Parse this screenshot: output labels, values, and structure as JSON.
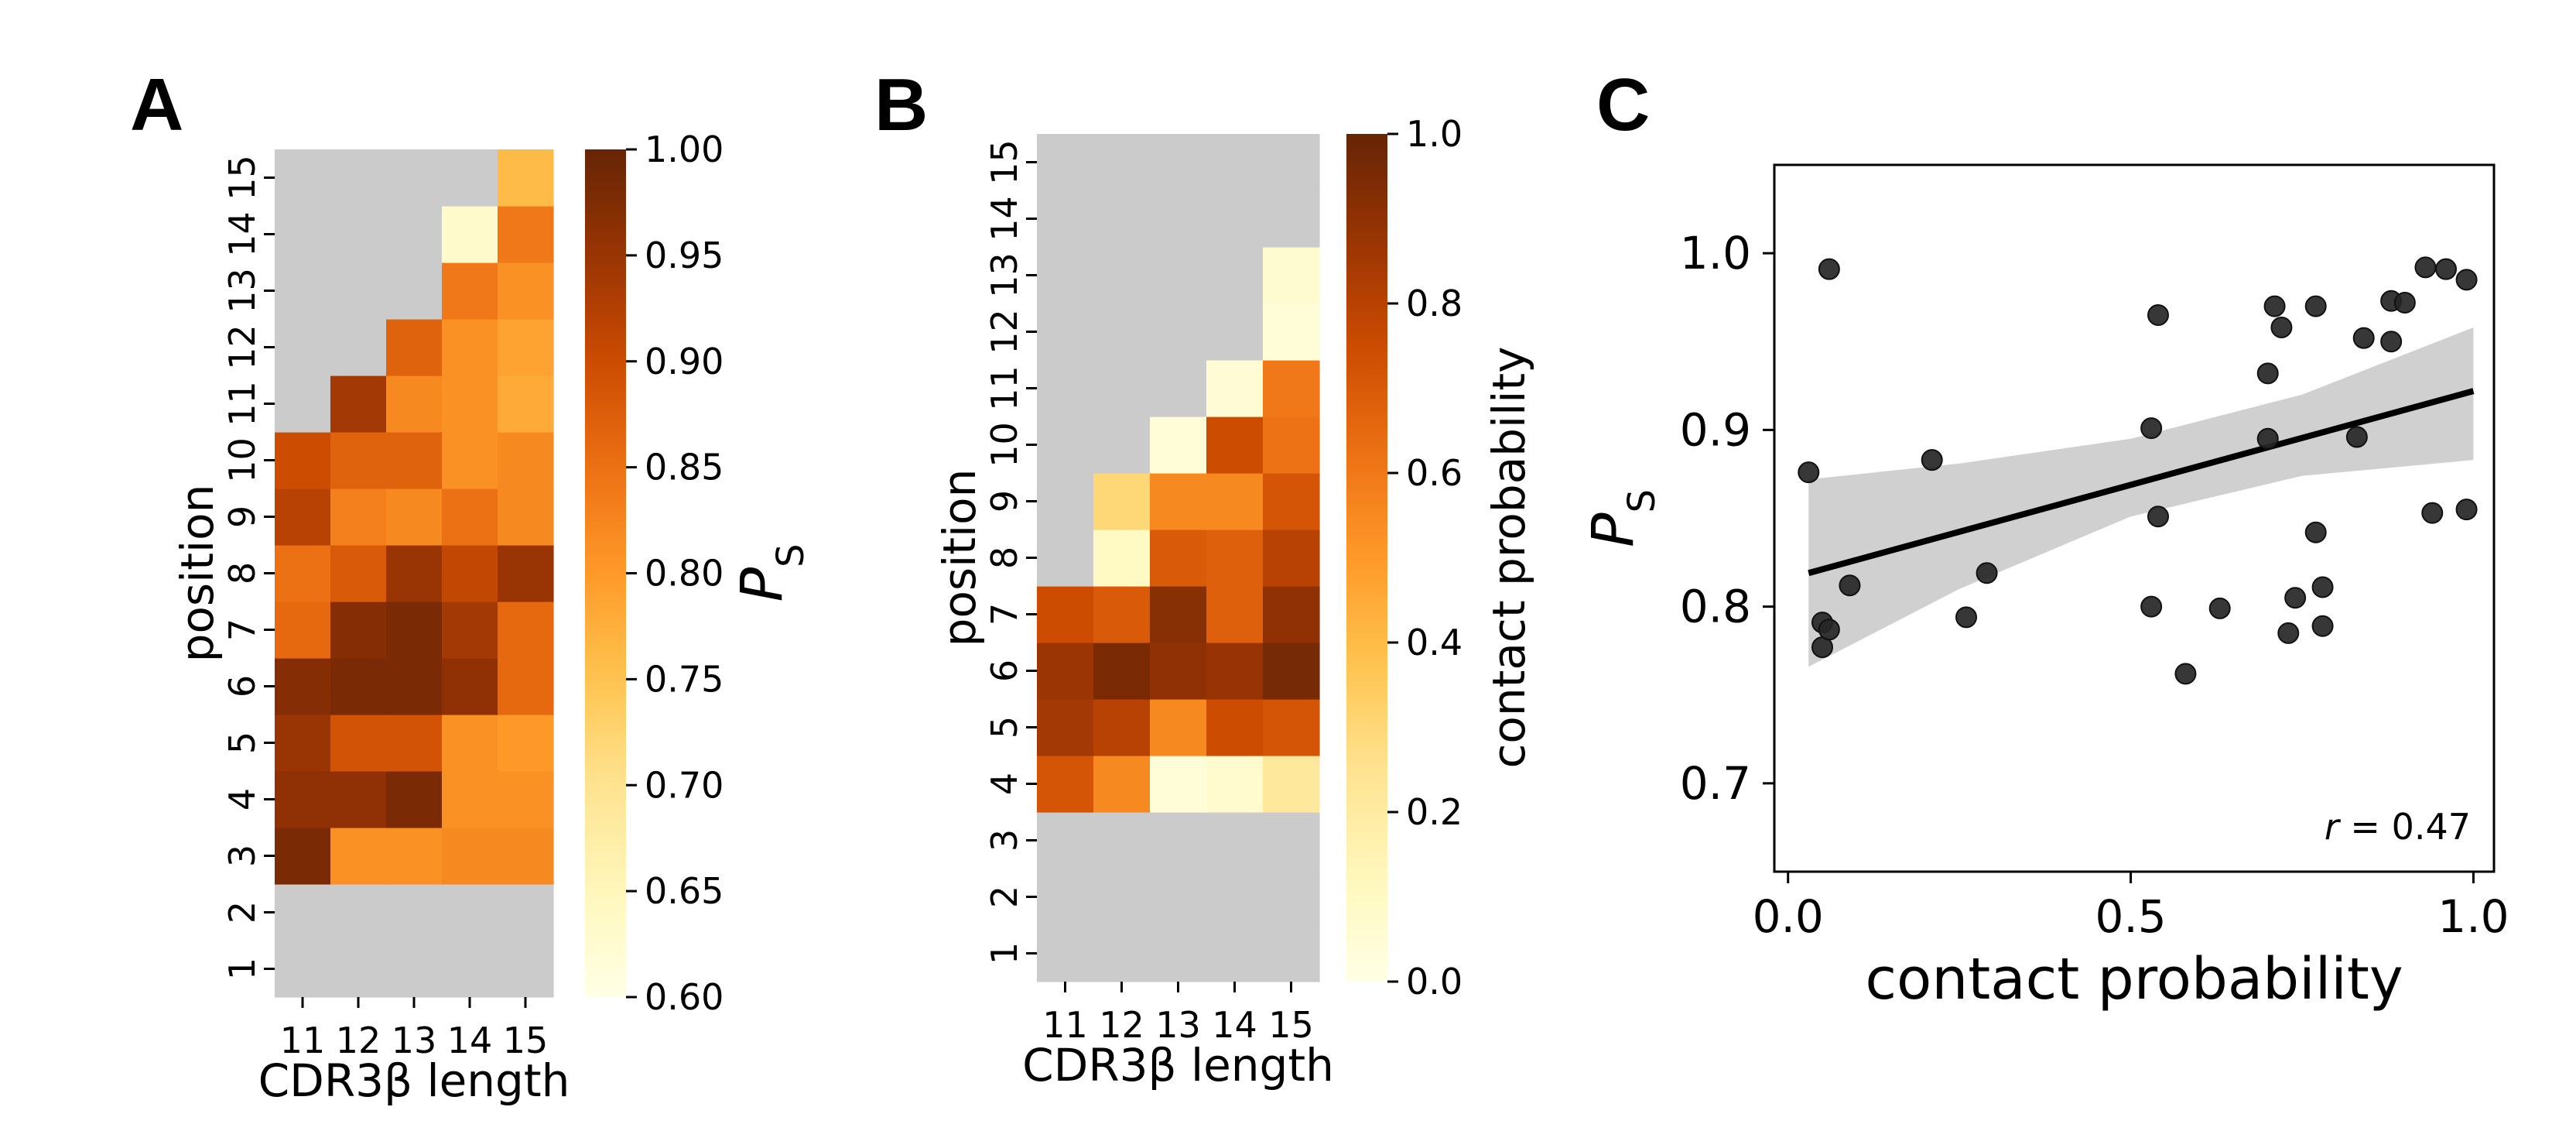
{
  "panels": {
    "A": {
      "letter": "A"
    },
    "B": {
      "letter": "B"
    },
    "C": {
      "letter": "C"
    }
  },
  "chart_data": [
    {
      "id": "A",
      "type": "heatmap",
      "title": "",
      "xlabel": "CDR3β length",
      "ylabel": "position",
      "x_categories": [
        "11",
        "12",
        "13",
        "14",
        "15"
      ],
      "y_categories": [
        "1",
        "2",
        "3",
        "4",
        "5",
        "6",
        "7",
        "8",
        "9",
        "10",
        "11",
        "12",
        "13",
        "14",
        "15"
      ],
      "values": [
        [
          null,
          null,
          null,
          null,
          null
        ],
        [
          null,
          null,
          null,
          null,
          null
        ],
        [
          0.98,
          0.81,
          0.81,
          0.82,
          0.82
        ],
        [
          0.96,
          0.96,
          0.98,
          0.81,
          0.81
        ],
        [
          0.95,
          0.89,
          0.89,
          0.81,
          0.8
        ],
        [
          0.97,
          0.98,
          0.98,
          0.96,
          0.86
        ],
        [
          0.86,
          0.97,
          0.98,
          0.94,
          0.86
        ],
        [
          0.85,
          0.88,
          0.95,
          0.91,
          0.95
        ],
        [
          0.92,
          0.83,
          0.82,
          0.85,
          0.82
        ],
        [
          0.9,
          0.87,
          0.87,
          0.81,
          0.82
        ],
        [
          null,
          0.94,
          0.82,
          0.81,
          0.78
        ],
        [
          null,
          null,
          0.87,
          0.81,
          0.79
        ],
        [
          null,
          null,
          null,
          0.84,
          0.81
        ],
        [
          null,
          null,
          null,
          0.63,
          0.84
        ],
        [
          null,
          null,
          null,
          null,
          0.76
        ]
      ],
      "colorbar": {
        "label": "P",
        "label_sub": "S",
        "min": 0.6,
        "max": 1.0,
        "ticks": [
          "0.60",
          "0.65",
          "0.70",
          "0.75",
          "0.80",
          "0.85",
          "0.90",
          "0.95",
          "1.00"
        ]
      }
    },
    {
      "id": "B",
      "type": "heatmap",
      "title": "",
      "xlabel": "CDR3β length",
      "ylabel": "position",
      "x_categories": [
        "11",
        "12",
        "13",
        "14",
        "15"
      ],
      "y_categories": [
        "1",
        "2",
        "3",
        "4",
        "5",
        "6",
        "7",
        "8",
        "9",
        "10",
        "11",
        "12",
        "13",
        "14",
        "15"
      ],
      "values": [
        [
          null,
          null,
          null,
          null,
          null
        ],
        [
          null,
          null,
          null,
          null,
          null
        ],
        [
          null,
          null,
          null,
          null,
          null
        ],
        [
          0.72,
          0.55,
          0.04,
          0.07,
          0.22
        ],
        [
          0.85,
          0.8,
          0.55,
          0.75,
          0.72
        ],
        [
          0.87,
          0.95,
          0.9,
          0.88,
          0.96
        ],
        [
          0.75,
          0.7,
          0.92,
          0.68,
          0.9
        ],
        [
          null,
          0.1,
          0.7,
          0.68,
          0.8
        ],
        [
          null,
          0.3,
          0.55,
          0.55,
          0.72
        ],
        [
          null,
          null,
          0.04,
          0.75,
          0.62
        ],
        [
          null,
          null,
          null,
          0.05,
          0.6
        ],
        [
          null,
          null,
          null,
          null,
          0.04
        ],
        [
          null,
          null,
          null,
          null,
          0.06
        ],
        [
          null,
          null,
          null,
          null,
          null
        ],
        [
          null,
          null,
          null,
          null,
          null
        ]
      ],
      "colorbar": {
        "label": "contact probability",
        "min": 0.0,
        "max": 1.0,
        "ticks": [
          "0.0",
          "0.2",
          "0.4",
          "0.6",
          "0.8",
          "1.0"
        ]
      }
    },
    {
      "id": "C",
      "type": "scatter",
      "title": "",
      "xlabel": "contact probability",
      "ylabel": "P",
      "ylabel_sub": "S",
      "xlim": [
        -0.02,
        1.03
      ],
      "ylim": [
        0.65,
        1.05
      ],
      "xticks": [
        "0.0",
        "0.5",
        "1.0"
      ],
      "yticks": [
        "0.7",
        "0.8",
        "0.9",
        "1.0"
      ],
      "points": [
        [
          0.03,
          0.876
        ],
        [
          0.05,
          0.791
        ],
        [
          0.05,
          0.777
        ],
        [
          0.06,
          0.787
        ],
        [
          0.06,
          0.991
        ],
        [
          0.09,
          0.812
        ],
        [
          0.21,
          0.883
        ],
        [
          0.26,
          0.794
        ],
        [
          0.29,
          0.819
        ],
        [
          0.53,
          0.901
        ],
        [
          0.53,
          0.8
        ],
        [
          0.54,
          0.965
        ],
        [
          0.54,
          0.851
        ],
        [
          0.58,
          0.762
        ],
        [
          0.63,
          0.799
        ],
        [
          0.7,
          0.932
        ],
        [
          0.7,
          0.895
        ],
        [
          0.71,
          0.97
        ],
        [
          0.72,
          0.958
        ],
        [
          0.73,
          0.785
        ],
        [
          0.74,
          0.805
        ],
        [
          0.77,
          0.97
        ],
        [
          0.77,
          0.842
        ],
        [
          0.78,
          0.811
        ],
        [
          0.78,
          0.789
        ],
        [
          0.83,
          0.896
        ],
        [
          0.84,
          0.952
        ],
        [
          0.88,
          0.973
        ],
        [
          0.88,
          0.95
        ],
        [
          0.9,
          0.972
        ],
        [
          0.93,
          0.992
        ],
        [
          0.94,
          0.853
        ],
        [
          0.96,
          0.991
        ],
        [
          0.99,
          0.985
        ],
        [
          0.99,
          0.855
        ]
      ],
      "fit": {
        "x": [
          0.03,
          1.0
        ],
        "y": [
          0.819,
          0.922
        ]
      },
      "ci": {
        "x": [
          0.03,
          0.25,
          0.5,
          0.75,
          1.0
        ],
        "upper": [
          0.872,
          0.881,
          0.895,
          0.92,
          0.958
        ],
        "lower": [
          0.766,
          0.81,
          0.851,
          0.874,
          0.883
        ]
      },
      "annotation": {
        "r_symbol": "r",
        "text": " = 0.47"
      }
    }
  ]
}
